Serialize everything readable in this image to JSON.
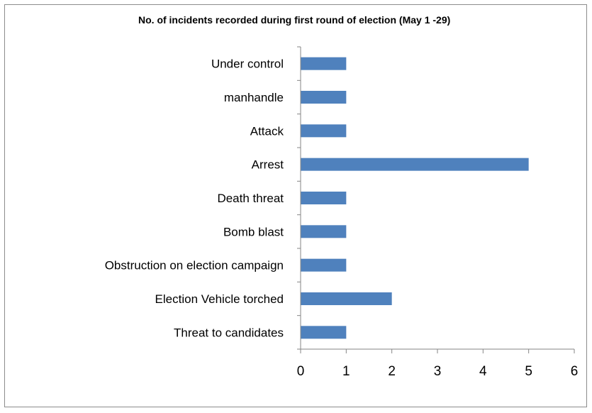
{
  "chart_data": {
    "type": "bar",
    "orientation": "horizontal",
    "title": "No. of incidents recorded during first round of election (May 1 -29)",
    "categories": [
      "Under control",
      "manhandle",
      "Attack",
      "Arrest",
      "Death threat",
      "Bomb blast",
      "Obstruction on election campaign",
      "Election Vehicle torched",
      "Threat to candidates"
    ],
    "values": [
      1,
      1,
      1,
      5,
      1,
      1,
      1,
      2,
      1
    ],
    "xlim": [
      0,
      6
    ],
    "xticks": [
      "0",
      "1",
      "2",
      "3",
      "4",
      "5",
      "6"
    ],
    "xlabel": "",
    "ylabel": "",
    "grid": false,
    "bar_color": "#4f81bd"
  }
}
